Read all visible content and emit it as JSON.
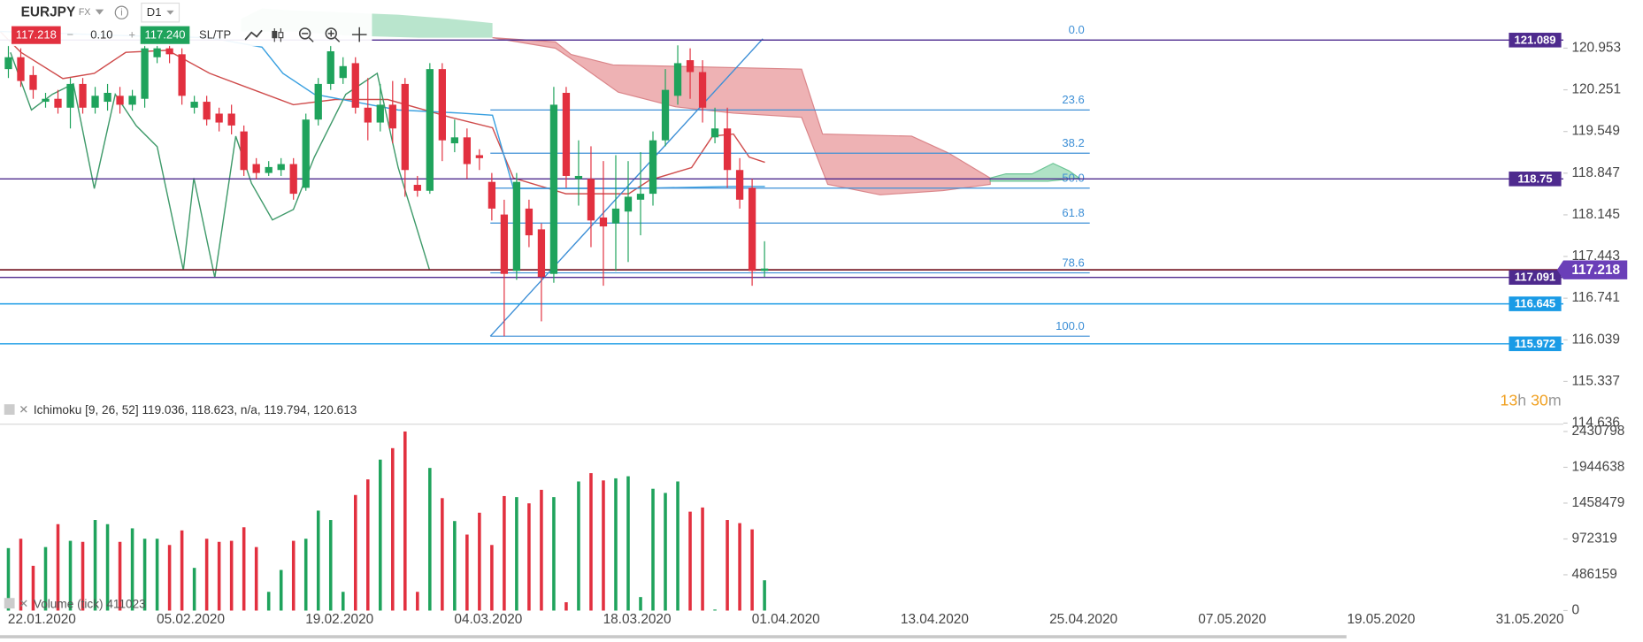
{
  "toolbar": {
    "symbol": "EURJPY",
    "market": "FX",
    "timeframe": "D1",
    "bid": "117.218",
    "lot": "0.10",
    "ask": "117.240",
    "sltp": "SL/TP"
  },
  "timer": {
    "hours": "13",
    "hours_unit": "h",
    "minutes": "30",
    "minutes_unit": "m"
  },
  "chart_data": [
    {
      "type": "candlestick",
      "indicator": "Ichimoku [9, 26, 52] 119.036, 118.623, n/a, 119.794, 120.613",
      "up_color": "#1fa35c",
      "down_color": "#e2303f",
      "open": [
        120.6,
        120.8,
        120.5,
        120.05,
        120.1,
        119.95,
        120.35,
        119.95,
        120.05,
        120.15,
        120.0,
        120.1,
        120.8,
        120.95,
        120.85,
        119.95,
        120.05,
        119.85,
        119.85,
        119.55,
        119.0,
        118.85,
        118.9,
        119.0,
        118.6,
        119.75,
        120.35,
        120.45,
        120.7,
        119.95,
        119.7,
        120.0,
        120.35,
        118.65,
        118.55,
        120.6,
        119.35,
        119.45,
        119.15,
        118.7,
        118.15,
        117.2,
        118.25,
        117.9,
        117.15,
        120.2,
        118.75,
        118.75,
        118.1,
        118.0,
        118.2,
        118.4,
        118.5,
        119.4,
        120.15,
        120.75,
        120.55,
        119.45,
        119.6,
        118.9,
        118.6,
        117.2
      ],
      "high": [
        121.0,
        120.95,
        120.65,
        120.2,
        120.25,
        120.45,
        120.45,
        120.3,
        120.35,
        120.3,
        120.25,
        121.05,
        121.1,
        121.05,
        120.95,
        120.15,
        120.15,
        119.95,
        120.0,
        119.65,
        119.1,
        119.05,
        119.1,
        119.1,
        119.85,
        120.45,
        121.0,
        120.8,
        120.8,
        120.45,
        120.35,
        120.4,
        120.45,
        118.8,
        120.7,
        120.7,
        119.75,
        119.6,
        119.25,
        118.85,
        118.4,
        118.85,
        118.4,
        118.0,
        120.3,
        120.3,
        119.4,
        119.3,
        119.05,
        119.15,
        119.05,
        119.2,
        119.55,
        120.6,
        121.0,
        120.95,
        120.75,
        119.95,
        119.95,
        119.1,
        118.75,
        117.7
      ],
      "low": [
        120.45,
        120.3,
        120.1,
        119.95,
        119.85,
        119.6,
        119.85,
        119.85,
        119.9,
        119.85,
        119.9,
        119.95,
        120.7,
        120.7,
        120.0,
        119.85,
        119.65,
        119.55,
        119.5,
        118.8,
        118.75,
        118.8,
        118.8,
        118.4,
        118.55,
        119.65,
        120.25,
        120.35,
        119.85,
        119.4,
        119.55,
        119.35,
        118.45,
        118.45,
        118.5,
        119.05,
        119.2,
        118.75,
        118.9,
        118.05,
        116.1,
        117.05,
        117.6,
        116.35,
        117.0,
        118.6,
        118.3,
        117.6,
        116.95,
        117.2,
        117.35,
        117.8,
        118.3,
        119.3,
        120.0,
        120.1,
        119.7,
        119.35,
        118.6,
        118.25,
        116.95,
        117.1
      ],
      "close": [
        120.8,
        120.4,
        120.25,
        120.1,
        119.95,
        120.35,
        119.95,
        120.15,
        120.2,
        120.0,
        120.15,
        120.95,
        120.95,
        120.85,
        120.15,
        120.05,
        119.75,
        119.7,
        119.65,
        118.9,
        118.85,
        118.95,
        119.0,
        118.5,
        119.75,
        120.35,
        120.9,
        120.65,
        119.95,
        119.7,
        120.0,
        119.6,
        118.9,
        118.55,
        120.6,
        119.4,
        119.45,
        119.0,
        119.1,
        118.25,
        117.15,
        118.7,
        117.8,
        117.1,
        120.0,
        118.8,
        118.8,
        118.05,
        117.95,
        118.25,
        118.45,
        118.5,
        119.4,
        120.25,
        120.7,
        120.55,
        119.95,
        119.6,
        118.9,
        118.4,
        117.2,
        117.24
      ],
      "ylim": [
        114.636,
        121.764
      ],
      "yticks": [
        120.953,
        120.251,
        119.549,
        118.847,
        118.145,
        117.443,
        116.741,
        116.039,
        115.337,
        114.636
      ],
      "xtick_labels": [
        "22.01.2020",
        "05.02.2020",
        "19.02.2020",
        "04.03.2020",
        "18.03.2020",
        "01.04.2020",
        "13.04.2020",
        "25.04.2020",
        "07.05.2020",
        "19.05.2020",
        "31.05.2020"
      ],
      "fib": {
        "high": 121.089,
        "low": 116.1,
        "color": "#3d8fd6",
        "levels": [
          {
            "value": 0,
            "label": "0.0"
          },
          23.6,
          38.2,
          {
            "value": 50,
            "label": "50.0"
          },
          61.8,
          78.6,
          {
            "value": 100,
            "label": "100.0"
          }
        ]
      },
      "price_lines": [
        {
          "value": 121.089,
          "color": "#4e2a8e"
        },
        {
          "value": 118.75,
          "color": "#4e2a8e"
        },
        {
          "value": 117.091,
          "color": "#4e2a8e"
        },
        {
          "value": 116.645,
          "color": "#1a9be6"
        },
        {
          "value": 115.972,
          "color": "#1a9be6"
        }
      ],
      "last_price": {
        "value": 117.218,
        "color": "#6a3fb8",
        "line_color": "#7a1f2b"
      }
    },
    {
      "type": "bar",
      "label": "Volume (tick)",
      "last_value": 411023,
      "values": [
        847920,
        975108,
        607676,
        862052,
        1172956,
        946844,
        932712,
        1229484,
        1172956,
        932712,
        1116428,
        975108,
        975108,
        890316,
        1088164,
        579412,
        975108,
        932712,
        946844,
        1130560,
        862052,
        254376,
        551148,
        946844,
        975108,
        1356672,
        1229484,
        254376,
        1568652,
        1780632,
        2049140,
        2204592,
        2430798,
        254376,
        1936084,
        1526256,
        1215352,
        1031636,
        1328408,
        890316,
        1554520,
        1540388,
        1455596,
        1639312,
        1540388,
        113056,
        1752368,
        1865424,
        1766500,
        1794764,
        1823028,
        183716,
        1653444,
        1596916,
        1752368,
        1342540,
        1399068,
        14132,
        1229484,
        1187088,
        1102296,
        411023
      ],
      "ylim": [
        0,
        2430798
      ],
      "yticks": [
        2430798,
        1944638,
        1458479,
        972319,
        486159,
        0
      ]
    }
  ]
}
